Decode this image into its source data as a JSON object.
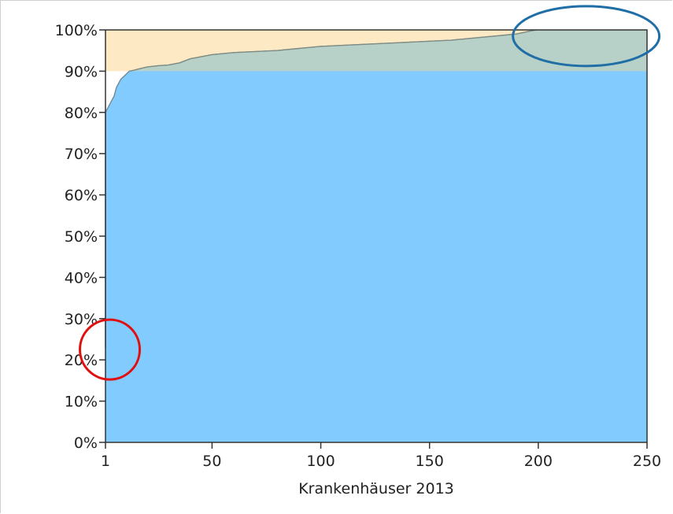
{
  "chart_data": {
    "type": "area",
    "xlabel": "Krankenhäuser 2013",
    "ylabel": "",
    "xlim": [
      1,
      250
    ],
    "ylim": [
      0,
      100
    ],
    "x_ticks": [
      1,
      50,
      100,
      150,
      200,
      250
    ],
    "x_tick_labels": [
      "1",
      "50",
      "100",
      "150",
      "200",
      "250"
    ],
    "y_ticks": [
      0,
      10,
      20,
      30,
      40,
      50,
      60,
      70,
      80,
      90,
      100
    ],
    "y_tick_labels": [
      "0%",
      "10%",
      "20%",
      "30%",
      "40%",
      "50%",
      "60%",
      "70%",
      "80%",
      "90%",
      "100%"
    ],
    "bands": [
      {
        "y_from": 90,
        "y_to": 100,
        "color": "#fde9c3"
      }
    ],
    "series": [
      {
        "color": "#82cbff",
        "x": [
          1,
          1,
          2,
          3,
          4,
          5,
          6,
          7,
          8,
          9,
          10,
          11,
          12,
          14,
          16,
          20,
          25,
          30,
          35,
          40,
          45,
          50,
          60,
          80,
          100,
          120,
          140,
          160,
          180,
          190,
          197,
          199
        ],
        "y": [
          23,
          80,
          81,
          82,
          83,
          84,
          86,
          87,
          88,
          88.5,
          89,
          89.5,
          90,
          90.2,
          90.5,
          91,
          91.3,
          91.5,
          92,
          93,
          93.5,
          94,
          94.5,
          95,
          96,
          96.5,
          97,
          97.5,
          98.5,
          99,
          99.8,
          100
        ]
      }
    ],
    "grid": false,
    "annotations": [
      {
        "shape": "ellipse",
        "color": "#e01010",
        "x": 3,
        "y": 22.5
      },
      {
        "shape": "ellipse",
        "color": "#1f6fa6",
        "x": 222,
        "y": 98.5
      }
    ]
  }
}
